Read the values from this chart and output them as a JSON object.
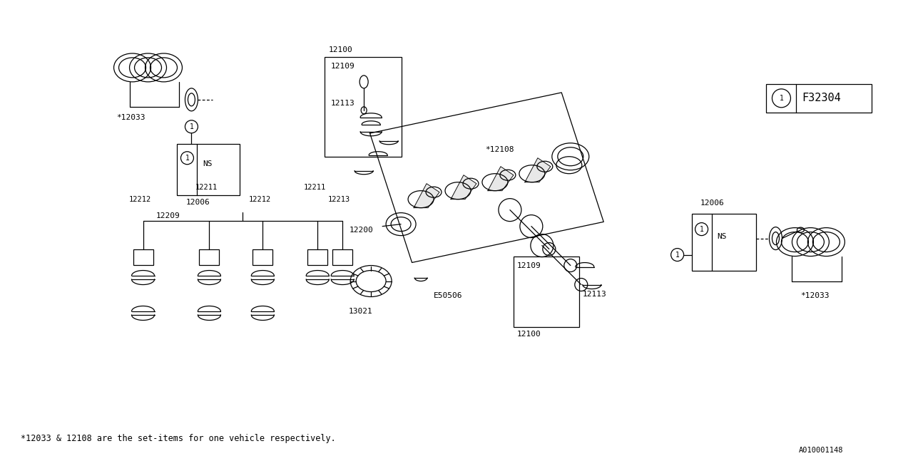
{
  "bg_color": "#ffffff",
  "line_color": "#000000",
  "fig_width": 12.8,
  "fig_height": 6.4,
  "dpi": 100,
  "footnote": "*12033 & 12108 are the set-items for one vehicle respectively.",
  "catalog_id": "A010001148",
  "legend_text": "F32304",
  "labels": {
    "star_12033_top": "*12033",
    "ns_top": "NS",
    "lbl_12006_top": "12006",
    "lbl_12100_top": "12100",
    "lbl_12109_top": "12109",
    "lbl_12113_top": "12113",
    "lbl_star_12108": "*12108",
    "lbl_12200": "12200",
    "lbl_e50506": "E50506",
    "lbl_13021": "13021",
    "lbl_12209": "12209",
    "lbl_12212a": "12212",
    "lbl_12211a": "12211",
    "lbl_12212b": "12212",
    "lbl_12211b": "12211",
    "lbl_12213": "12213",
    "lbl_12100_bot": "12100",
    "lbl_12109_bot": "12109",
    "lbl_12113_bot": "12113",
    "lbl_12006_bot": "12006",
    "lbl_ns_bot": "NS",
    "lbl_star_12033_bot": "*12033",
    "circle_1": "1"
  }
}
